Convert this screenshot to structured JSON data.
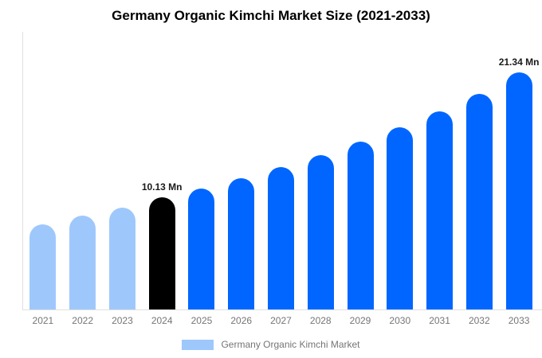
{
  "title": "Germany Organic Kimchi Market Size (2021-2033)",
  "colors": {
    "past": "#9ec8fc",
    "current": "#000000",
    "forecast": "#0066ff",
    "axis_line": "#e0e0e0",
    "tick_text": "#757575",
    "annotation_text": "#1a1a1a"
  },
  "legend": {
    "label": "Germany Organic Kimchi Market",
    "swatch_color": "#9ec8fc"
  },
  "chart_data": {
    "type": "bar",
    "title": "Germany Organic Kimchi Market Size (2021-2033)",
    "categories": [
      "2021",
      "2022",
      "2023",
      "2024",
      "2025",
      "2026",
      "2027",
      "2028",
      "2029",
      "2030",
      "2031",
      "2032",
      "2033"
    ],
    "values": [
      7.65,
      8.45,
      9.2,
      10.13,
      10.9,
      11.8,
      12.8,
      13.9,
      15.1,
      16.4,
      17.85,
      19.4,
      21.34
    ],
    "bar_color_keys": [
      "past",
      "past",
      "past",
      "current",
      "forecast",
      "forecast",
      "forecast",
      "forecast",
      "forecast",
      "forecast",
      "forecast",
      "forecast",
      "forecast"
    ],
    "annotations": [
      {
        "index": 3,
        "text": "10.13 Mn"
      },
      {
        "index": 12,
        "text": "21.34 Mn"
      }
    ],
    "xlabel": "",
    "ylabel": "",
    "ylim": [
      0,
      25
    ],
    "yticks": [
      0,
      5,
      10,
      15,
      20,
      25
    ],
    "grid": false,
    "legend_position": "bottom",
    "unit": "Mn"
  }
}
